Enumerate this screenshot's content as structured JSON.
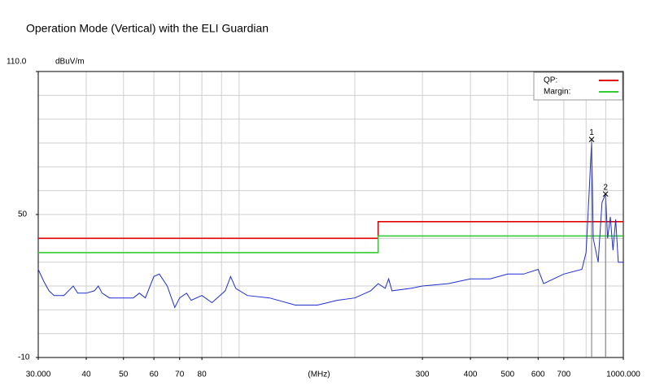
{
  "chart_data": {
    "type": "line",
    "title": "Operation Mode (Vertical) with the ELI Guardian",
    "y_unit": "dBuV/m",
    "x_label": "(MHz)",
    "xscale": "log",
    "xlim": [
      30,
      1000
    ],
    "ylim": [
      -10,
      110
    ],
    "xticks": [
      {
        "value": 30,
        "label": "30.000"
      },
      40,
      50,
      60,
      70,
      80,
      300,
      400,
      500,
      600,
      700,
      {
        "value": 1000,
        "label": "1000.000"
      }
    ],
    "yticks": [
      {
        "value": 110,
        "label": "110.0"
      },
      50,
      -10
    ],
    "xgrid": [
      40,
      50,
      60,
      70,
      80,
      90,
      100,
      200,
      300,
      400,
      500,
      600,
      700,
      800,
      900
    ],
    "ygrid": [
      0,
      10,
      20,
      30,
      40,
      50,
      60,
      70,
      80,
      90,
      100
    ],
    "series": [
      {
        "name": "QP:",
        "color": "#e00000",
        "x": [
          30,
          230,
          230,
          1000
        ],
        "values": [
          40,
          40,
          47,
          47
        ]
      },
      {
        "name": "Margin:",
        "color": "#33cc33",
        "x": [
          30,
          230,
          230,
          1000
        ],
        "values": [
          34,
          34,
          41,
          41
        ]
      },
      {
        "color": "#1f2fd0",
        "x": [
          30,
          31,
          32,
          33,
          35,
          37,
          38,
          40,
          42,
          43,
          44,
          46,
          50,
          53,
          55,
          57,
          60,
          62,
          65,
          68,
          70,
          73,
          75,
          80,
          85,
          92,
          95,
          98,
          105,
          120,
          140,
          160,
          180,
          200,
          220,
          230,
          240,
          245,
          250,
          280,
          300,
          350,
          400,
          450,
          500,
          550,
          600,
          620,
          700,
          780,
          800,
          815,
          827,
          835,
          860,
          880,
          899,
          910,
          925,
          940,
          955,
          970,
          1000
        ],
        "values": [
          27,
          22,
          18,
          16,
          16,
          20,
          17,
          17,
          18,
          20,
          17,
          15,
          15,
          15,
          17,
          15,
          24,
          25,
          20,
          11,
          15,
          17,
          14,
          16,
          13,
          18,
          24,
          19,
          16,
          15,
          12,
          12,
          14,
          15,
          18,
          21,
          19,
          23,
          18,
          19,
          20,
          21,
          23,
          23,
          25,
          25,
          27,
          21,
          25,
          27,
          34,
          60,
          81.5,
          40,
          30,
          55,
          58.6,
          40,
          49,
          35,
          48,
          30,
          30
        ]
      }
    ],
    "markers": [
      {
        "label": "1",
        "x": 827,
        "value": 81.5
      },
      {
        "label": "2",
        "x": 899,
        "value": 58.6
      }
    ],
    "grid": true,
    "legend": "top-right"
  }
}
